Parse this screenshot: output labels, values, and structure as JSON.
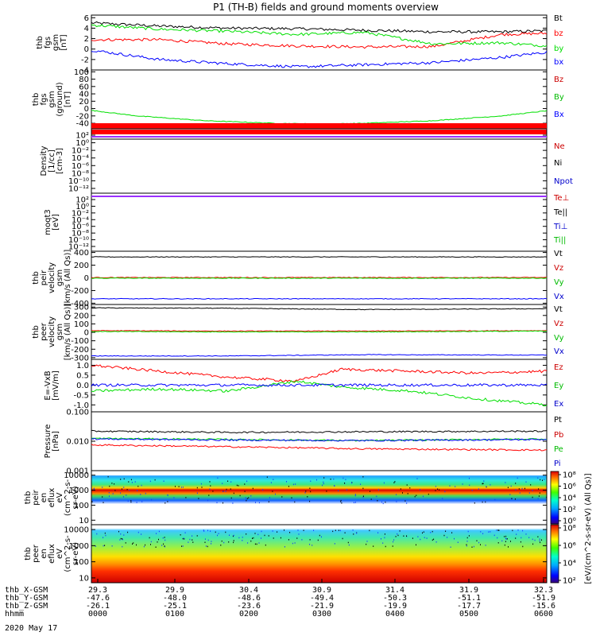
{
  "title": "P1 (TH-B) fields and ground moments overview",
  "date": "2020 May 17",
  "colors": {
    "black": "#000000",
    "red": "#ff0000",
    "green": "#00e000",
    "blue": "#0000ff",
    "purple": "#9b30ff"
  },
  "chart_data": [
    {
      "type": "line",
      "id": "fgs",
      "ylabel": [
        "thb",
        "fgs",
        "gsm",
        "[nT]"
      ],
      "ylim": [
        -4,
        6.5
      ],
      "ticks": [
        "6",
        "4",
        "2",
        "0",
        "-2",
        "-4"
      ],
      "tick_values": [
        6,
        4,
        2,
        0,
        -2,
        -4
      ],
      "series": [
        {
          "name": "Bt",
          "color": "#000000",
          "x": [
            0,
            0.15,
            0.3,
            0.45,
            0.6,
            0.75,
            0.9,
            1.0
          ],
          "values": [
            5.0,
            4.4,
            4.0,
            3.9,
            3.6,
            3.3,
            3.3,
            3.5
          ]
        },
        {
          "name": "bz",
          "color": "#ff0000",
          "x": [
            0,
            0.15,
            0.3,
            0.45,
            0.6,
            0.75,
            0.9,
            1.0
          ],
          "values": [
            1.8,
            1.8,
            1.0,
            0.6,
            0.4,
            0.5,
            2.8,
            3.0
          ]
        },
        {
          "name": "by",
          "color": "#00e000",
          "x": [
            0,
            0.15,
            0.3,
            0.45,
            0.6,
            0.75,
            0.9,
            1.0
          ],
          "values": [
            4.6,
            3.8,
            3.4,
            2.8,
            3.2,
            1.0,
            1.2,
            0.6
          ]
        },
        {
          "name": "bx",
          "color": "#0000ff",
          "x": [
            0,
            0.15,
            0.3,
            0.45,
            0.6,
            0.75,
            0.9,
            1.0
          ],
          "values": [
            -0.2,
            -2.0,
            -2.8,
            -3.4,
            -3.0,
            -2.6,
            -1.6,
            -0.6
          ]
        }
      ]
    },
    {
      "type": "line",
      "id": "fgs_ground",
      "ylabel": [
        "thb",
        "fgs",
        "gsm",
        "(ground)",
        "[nT]"
      ],
      "ylim": [
        -55,
        105
      ],
      "ticks": [
        "100",
        "80",
        "60",
        "40",
        "20",
        "0",
        "-20",
        "-40"
      ],
      "tick_values": [
        100,
        80,
        60,
        40,
        20,
        0,
        -20,
        -40
      ],
      "legend": [
        "Bz",
        "By",
        "Bx"
      ],
      "series": [
        {
          "name": "By",
          "color": "#00e000",
          "x": [
            0,
            0.1,
            0.25,
            0.4,
            0.5,
            0.6,
            0.75,
            0.9,
            1.0
          ],
          "values": [
            -5,
            -20,
            -33,
            -40,
            -42,
            -40,
            -33,
            -20,
            -6
          ]
        }
      ]
    },
    {
      "type": "line",
      "id": "density",
      "ylabel": [
        "Density",
        "[1/cc]",
        "[cm-3]"
      ],
      "ticks": [
        "10²",
        "10⁰",
        "10⁻²",
        "10⁻⁴",
        "10⁻⁶",
        "10⁻⁸",
        "10⁻¹⁰",
        "10⁻¹²"
      ],
      "legend": [
        "Ne",
        "Ni",
        "Npot"
      ]
    },
    {
      "type": "line",
      "id": "temp",
      "ylabel": [
        "moqt3",
        "[eV]"
      ],
      "ticks": [
        "10²",
        "10⁰",
        "10⁻²",
        "10⁻⁴",
        "10⁻⁶",
        "10⁻⁸",
        "10⁻¹⁰",
        "10⁻¹²"
      ],
      "legend": [
        "Te⊥",
        "Te||",
        "Ti⊥",
        "Ti||"
      ]
    },
    {
      "type": "line",
      "id": "peir_vel",
      "ylabel": [
        "thb",
        "peir",
        "velocity",
        "gsm",
        "[km/s (All Qs)]"
      ],
      "ylim": [
        -420,
        420
      ],
      "ticks": [
        "400",
        "200",
        "0",
        "-200",
        "-400"
      ],
      "tick_values": [
        400,
        200,
        0,
        -200,
        -400
      ],
      "legend": [
        "Vt",
        "Vz",
        "Vy",
        "Vx"
      ],
      "series": [
        {
          "name": "Vt",
          "color": "#000000",
          "x": [
            0,
            1
          ],
          "values": [
            330,
            330
          ]
        },
        {
          "name": "Vz",
          "color": "#ff0000",
          "x": [
            0,
            1
          ],
          "values": [
            5,
            5
          ]
        },
        {
          "name": "Vy",
          "color": "#00e000",
          "x": [
            0,
            1
          ],
          "values": [
            -5,
            -5
          ]
        },
        {
          "name": "Vx",
          "color": "#0000ff",
          "x": [
            0,
            1
          ],
          "values": [
            -330,
            -330
          ]
        }
      ]
    },
    {
      "type": "line",
      "id": "peer_vel",
      "ylabel": [
        "thb",
        "peer",
        "velocity",
        "gsm",
        "[km/s (All Qs)]"
      ],
      "ylim": [
        -320,
        330
      ],
      "ticks": [
        "300",
        "200",
        "100",
        "0",
        "-100",
        "-200",
        "-300"
      ],
      "tick_values": [
        300,
        200,
        100,
        0,
        -100,
        -200,
        -300
      ],
      "legend": [
        "Vt",
        "Vz",
        "Vy",
        "Vx"
      ],
      "series": [
        {
          "name": "Vt",
          "color": "#000000",
          "x": [
            0,
            0.3,
            0.6,
            1
          ],
          "values": [
            290,
            285,
            270,
            280
          ]
        },
        {
          "name": "Vz",
          "color": "#ff0000",
          "x": [
            0,
            0.3,
            0.6,
            1
          ],
          "values": [
            20,
            15,
            15,
            20
          ]
        },
        {
          "name": "Vy",
          "color": "#00e000",
          "x": [
            0,
            0.3,
            0.6,
            1
          ],
          "values": [
            10,
            5,
            5,
            15
          ]
        },
        {
          "name": "Vx",
          "color": "#0000ff",
          "x": [
            0,
            0.3,
            0.6,
            1
          ],
          "values": [
            -280,
            -280,
            -265,
            -270
          ]
        }
      ]
    },
    {
      "type": "line",
      "id": "efield",
      "ylabel": [
        "E=-VxB",
        "[mV/m]"
      ],
      "ylim": [
        -1.35,
        1.3
      ],
      "ticks": [
        "1.0",
        "0.5",
        "0.0",
        "-0.5",
        "-1.0"
      ],
      "tick_values": [
        1.0,
        0.5,
        0.0,
        -0.5,
        -1.0
      ],
      "legend": [
        "Ez",
        "Ey",
        "Ex"
      ],
      "series": [
        {
          "name": "Ez",
          "color": "#ff0000",
          "x": [
            0,
            0.15,
            0.3,
            0.45,
            0.55,
            0.7,
            0.85,
            1.0
          ],
          "values": [
            1.0,
            0.7,
            0.4,
            0.2,
            0.8,
            0.7,
            0.6,
            0.7
          ]
        },
        {
          "name": "Ey",
          "color": "#00e000",
          "x": [
            0,
            0.15,
            0.3,
            0.45,
            0.55,
            0.7,
            0.85,
            1.0
          ],
          "values": [
            -0.3,
            -0.2,
            -0.3,
            0.2,
            -0.1,
            -0.3,
            -0.7,
            -1.0
          ]
        },
        {
          "name": "Ex",
          "color": "#0000ff",
          "x": [
            0,
            1
          ],
          "values": [
            0.0,
            0.0
          ]
        }
      ]
    },
    {
      "type": "line",
      "id": "pressure",
      "ylabel": [
        "Pressure",
        "[nPa]"
      ],
      "yscale": "log",
      "ylim": [
        0.001,
        0.1
      ],
      "ticks": [
        "0.100",
        "0.010",
        "0.001"
      ],
      "tick_values": [
        0.1,
        0.01,
        0.001
      ],
      "legend": [
        "Pt",
        "Pb",
        "Pe",
        "Pi"
      ],
      "series": [
        {
          "name": "Pt",
          "color": "#000000",
          "x": [
            0,
            0.3,
            0.6,
            1
          ],
          "values": [
            0.022,
            0.02,
            0.021,
            0.022
          ]
        },
        {
          "name": "Pb",
          "color": "#ff0000",
          "x": [
            0,
            0.3,
            0.6,
            1
          ],
          "values": [
            0.0075,
            0.0065,
            0.0055,
            0.005
          ]
        },
        {
          "name": "Pe",
          "color": "#00e000",
          "x": [
            0,
            0.3,
            0.6,
            1
          ],
          "values": [
            0.0125,
            0.0115,
            0.0105,
            0.012
          ]
        },
        {
          "name": "Pi",
          "color": "#0000ff",
          "x": [
            0,
            0.3,
            0.6,
            1
          ],
          "values": [
            0.012,
            0.011,
            0.0105,
            0.0115
          ]
        }
      ]
    },
    {
      "type": "heatmap",
      "id": "peir_eflux",
      "ylabel": [
        "thb",
        "peir",
        "en",
        "eflux",
        "eV",
        "(cm^2-s-",
        "sr-eV)"
      ],
      "yscale": "log",
      "ylim": [
        5,
        20000
      ],
      "ticks": [
        "10000",
        "1000",
        "100",
        "10"
      ],
      "tick_values": [
        10000,
        1000,
        100,
        10
      ],
      "colorbar": {
        "label": "[eV/(cm^2-s-sr-eV) (All Qs)]",
        "ticks": [
          "10⁸",
          "10⁶",
          "10⁴",
          "10²",
          "10⁰"
        ]
      }
    },
    {
      "type": "heatmap",
      "id": "peer_eflux",
      "ylabel": [
        "thb",
        "peer",
        "en",
        "eflux",
        "eV",
        "(cm^2-s-",
        "sr-eV)"
      ],
      "yscale": "log",
      "ylim": [
        5,
        20000
      ],
      "ticks": [
        "10000",
        "1000",
        "100",
        "10"
      ],
      "tick_values": [
        10000,
        1000,
        100,
        10
      ],
      "colorbar": {
        "label": "[eV/(cm^2-s-sr-eV) (All Qs)]",
        "ticks": [
          "10⁸",
          "10⁶",
          "10⁴",
          "10²"
        ]
      }
    }
  ],
  "xaxis": {
    "rows": [
      {
        "label": "thb_X-GSM",
        "values": [
          "29.3",
          "29.9",
          "30.4",
          "30.9",
          "31.4",
          "31.9",
          "32.3"
        ]
      },
      {
        "label": "thb_Y-GSM",
        "values": [
          "-47.6",
          "-48.0",
          "-48.6",
          "-49.4",
          "-50.3",
          "-51.1",
          "-51.9"
        ]
      },
      {
        "label": "thb_Z-GSM",
        "values": [
          "-26.1",
          "-25.1",
          "-23.6",
          "-21.9",
          "-19.9",
          "-17.7",
          "-15.6"
        ]
      },
      {
        "label": "hhmm",
        "values": [
          "0000",
          "0100",
          "0200",
          "0300",
          "0400",
          "0500",
          "0600"
        ]
      }
    ]
  }
}
